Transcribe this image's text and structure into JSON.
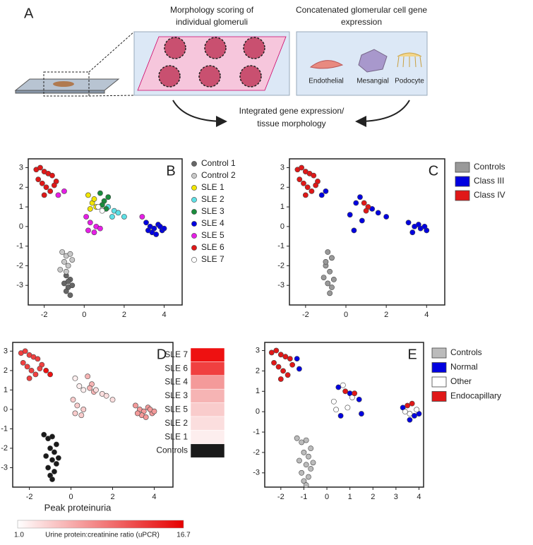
{
  "panel_a": {
    "label": "A",
    "morphology_title": [
      "Morphology scoring of",
      "individual glomeruli"
    ],
    "expression_title": [
      "Concatenated glomerular cell gene",
      "expression"
    ],
    "cells": [
      "Endothelial",
      "Mesangial",
      "Podocyte"
    ],
    "integration": [
      "Integrated gene expression/",
      "tissue morphology"
    ]
  },
  "chart_data": [
    {
      "type": "scatter",
      "panel": "B",
      "legend_marker": "circle",
      "xlim": [
        -2.8,
        4.9
      ],
      "ylim": [
        -4,
        3.45
      ],
      "xticks": [
        -2,
        0,
        2,
        4
      ],
      "yticks": [
        -3,
        -2,
        -1,
        0,
        1,
        2,
        3
      ],
      "series": [
        {
          "name": "Control 1",
          "color": "#666666",
          "x": [
            -0.9,
            -0.7,
            -1.0,
            -0.8,
            -0.6,
            -0.9,
            -0.7,
            -0.8
          ],
          "y": [
            -2.5,
            -2.7,
            -2.9,
            -3.1,
            -3.0,
            -3.3,
            -3.5,
            -2.8
          ]
        },
        {
          "name": "Control 2",
          "color": "#c8c8c8",
          "x": [
            -1.1,
            -0.9,
            -0.7,
            -1.0,
            -0.8,
            -0.6,
            -1.2,
            -0.9
          ],
          "y": [
            -1.3,
            -1.5,
            -1.4,
            -1.8,
            -2.0,
            -1.7,
            -2.2,
            -2.3
          ]
        },
        {
          "name": "SLE 1",
          "color": "#f2e600",
          "x": [
            0.2,
            0.4,
            0.6,
            0.3,
            0.5
          ],
          "y": [
            1.6,
            1.2,
            1.0,
            0.9,
            1.4
          ]
        },
        {
          "name": "SLE 2",
          "color": "#5ee0e6",
          "x": [
            1.2,
            1.5,
            1.7,
            2.0,
            1.4
          ],
          "y": [
            1.0,
            0.8,
            0.7,
            0.5,
            0.5
          ]
        },
        {
          "name": "SLE 3",
          "color": "#1a8c3c",
          "x": [
            0.8,
            1.0,
            1.1,
            0.9,
            1.2
          ],
          "y": [
            1.7,
            1.3,
            0.9,
            1.1,
            1.5
          ]
        },
        {
          "name": "SLE 4",
          "color": "#0000e0",
          "x": [
            3.1,
            3.3,
            3.5,
            3.7,
            3.9,
            3.4,
            3.6,
            3.8,
            4.0,
            3.2
          ],
          "y": [
            0.2,
            0.0,
            -0.1,
            0.1,
            -0.2,
            -0.3,
            -0.4,
            0.0,
            -0.1,
            -0.2
          ]
        },
        {
          "name": "SLE 5",
          "color": "#e61ee6",
          "x": [
            0.1,
            0.3,
            0.6,
            0.5,
            0.8,
            0.2,
            -1.0,
            -1.3,
            2.9
          ],
          "y": [
            0.5,
            0.2,
            0.0,
            -0.3,
            -0.1,
            -0.2,
            1.8,
            1.6,
            0.5
          ]
        },
        {
          "name": "SLE 6",
          "color": "#e01818",
          "x": [
            -2.4,
            -2.2,
            -2.0,
            -1.8,
            -1.6,
            -1.4,
            -2.3,
            -2.1,
            -1.9,
            -1.7,
            -1.5,
            -2.0
          ],
          "y": [
            2.9,
            3.0,
            2.8,
            2.7,
            2.6,
            2.3,
            2.4,
            2.2,
            2.0,
            1.8,
            2.1,
            1.6
          ]
        },
        {
          "name": "SLE 7",
          "color": "#ffffff",
          "x": [
            0.7,
            0.9
          ],
          "y": [
            1.0,
            0.8
          ]
        }
      ]
    },
    {
      "type": "scatter",
      "panel": "C",
      "legend_marker": "square",
      "xlim": [
        -2.8,
        4.9
      ],
      "ylim": [
        -4,
        3.45
      ],
      "xticks": [
        -2,
        0,
        2,
        4
      ],
      "yticks": [
        -3,
        -2,
        -1,
        0,
        1,
        2,
        3
      ],
      "series": [
        {
          "name": "Controls",
          "color": "#999999",
          "x": [
            -0.9,
            -0.7,
            -1.0,
            -0.8,
            -1.1,
            -0.9,
            -0.7,
            -0.8,
            -1.0,
            -0.6
          ],
          "y": [
            -1.3,
            -1.6,
            -2.0,
            -2.3,
            -2.6,
            -2.9,
            -3.1,
            -3.4,
            -1.8,
            -2.7
          ]
        },
        {
          "name": "Class III",
          "color": "#0000e0",
          "x": [
            3.1,
            3.4,
            3.7,
            4.0,
            3.3,
            3.6,
            3.9,
            0.2,
            0.5,
            0.8,
            1.3,
            1.6,
            2.0,
            0.4,
            0.7,
            -1.0,
            -1.2
          ],
          "y": [
            0.2,
            0.0,
            -0.1,
            -0.2,
            -0.3,
            0.1,
            0.0,
            0.6,
            1.2,
            0.3,
            0.9,
            0.7,
            0.5,
            -0.2,
            1.5,
            1.8,
            1.6
          ]
        },
        {
          "name": "Class IV",
          "color": "#e01818",
          "x": [
            -2.4,
            -2.2,
            -2.0,
            -1.8,
            -1.6,
            -1.4,
            -2.3,
            -2.1,
            -1.9,
            -1.7,
            -1.5,
            -2.0,
            0.9,
            1.1,
            1.0
          ],
          "y": [
            2.9,
            3.0,
            2.8,
            2.7,
            2.6,
            2.3,
            2.4,
            2.2,
            2.0,
            1.8,
            2.1,
            1.6,
            1.2,
            1.0,
            0.8
          ]
        }
      ]
    },
    {
      "type": "scatter",
      "panel": "D",
      "legend_marker": "stacked",
      "xlim": [
        -2.8,
        4.9
      ],
      "ylim": [
        -4,
        3.45
      ],
      "xticks": [
        -2,
        0,
        2,
        4
      ],
      "yticks": [
        -3,
        -2,
        -1,
        0,
        1,
        2,
        3
      ],
      "colorbar": {
        "title": "Peak proteinuria",
        "label": "Urine protein:creatinine ratio (uPCR)",
        "min": {
          "value": 1,
          "label": "1.0"
        },
        "max": 16.7,
        "min_color": "#ffffff",
        "max_color": "#e60000"
      },
      "series": [
        {
          "name": "SLE 7",
          "color": "#ee1111",
          "x": [
            -1.2,
            -1.0
          ],
          "y": [
            2.0,
            1.8
          ]
        },
        {
          "name": "SLE 6",
          "color": "#f04040",
          "x": [
            -2.4,
            -2.2,
            -2.0,
            -1.8,
            -1.6,
            -1.4,
            -2.3,
            -2.1,
            -1.9,
            -1.7,
            -1.5,
            -2.0
          ],
          "y": [
            2.9,
            3.0,
            2.8,
            2.7,
            2.6,
            2.3,
            2.4,
            2.2,
            2.0,
            1.8,
            2.1,
            1.6
          ]
        },
        {
          "name": "SLE 4",
          "color": "#f49a9a",
          "x": [
            3.1,
            3.3,
            3.5,
            3.7,
            3.9,
            3.4,
            3.6,
            3.8,
            4.0,
            3.2
          ],
          "y": [
            0.2,
            0.0,
            -0.1,
            0.1,
            -0.2,
            -0.3,
            -0.4,
            0.0,
            -0.1,
            -0.2
          ]
        },
        {
          "name": "SLE 3",
          "color": "#f6b4b4",
          "x": [
            0.8,
            1.0,
            1.1,
            0.9
          ],
          "y": [
            1.7,
            1.3,
            0.9,
            1.1
          ]
        },
        {
          "name": "SLE 5",
          "color": "#f9cccc",
          "x": [
            0.1,
            0.3,
            0.6,
            0.5,
            0.2
          ],
          "y": [
            0.5,
            0.2,
            0.0,
            -0.3,
            -0.2
          ]
        },
        {
          "name": "SLE 2",
          "color": "#fbdede",
          "x": [
            1.2,
            1.5,
            1.7,
            2.0
          ],
          "y": [
            1.0,
            0.8,
            0.7,
            0.5
          ]
        },
        {
          "name": "SLE 1",
          "color": "#fdeeee",
          "x": [
            0.2,
            0.4,
            0.6
          ],
          "y": [
            1.6,
            1.2,
            1.0
          ]
        },
        {
          "name": "Controls",
          "color": "#1a1a1a",
          "x": [
            -1.3,
            -1.1,
            -0.9,
            -0.7,
            -1.0,
            -0.8,
            -1.2,
            -0.9,
            -0.7,
            -1.1,
            -0.8,
            -1.0,
            -0.6,
            -0.9
          ],
          "y": [
            -1.3,
            -1.5,
            -1.4,
            -1.8,
            -2.0,
            -2.2,
            -2.4,
            -2.6,
            -2.8,
            -3.0,
            -3.2,
            -3.4,
            -2.5,
            -3.6
          ]
        }
      ]
    },
    {
      "type": "scatter",
      "panel": "E",
      "legend_marker": "square",
      "xlim": [
        -2.7,
        4.2
      ],
      "ylim": [
        -3.7,
        3.4
      ],
      "xticks": [
        -2,
        -1,
        0,
        1,
        2,
        3,
        4
      ],
      "yticks": [
        -3,
        -2,
        -1,
        0,
        1,
        2,
        3
      ],
      "series": [
        {
          "name": "Controls",
          "color": "#bbbbbb",
          "x": [
            -1.3,
            -1.1,
            -0.9,
            -0.7,
            -1.0,
            -0.8,
            -1.2,
            -0.9,
            -0.7,
            -1.1,
            -0.8,
            -1.0,
            -0.6,
            -0.9
          ],
          "y": [
            -1.3,
            -1.5,
            -1.4,
            -1.8,
            -2.0,
            -2.2,
            -2.4,
            -2.6,
            -2.8,
            -3.0,
            -3.2,
            -3.4,
            -2.5,
            -3.6
          ]
        },
        {
          "name": "Normal",
          "color": "#0000e0",
          "x": [
            -1.3,
            -1.2,
            0.5,
            1.0,
            1.4,
            0.6,
            1.5,
            3.3,
            3.8,
            4.0,
            3.6
          ],
          "y": [
            2.6,
            2.1,
            1.2,
            0.9,
            0.6,
            -0.2,
            -0.1,
            0.2,
            -0.2,
            -0.1,
            -0.4
          ]
        },
        {
          "name": "Other",
          "color": "#ffffff",
          "x": [
            0.3,
            0.7,
            1.1,
            0.4,
            0.9,
            3.4,
            3.6,
            3.9
          ],
          "y": [
            0.5,
            1.3,
            0.7,
            0.1,
            0.2,
            0.0,
            -0.1,
            0.1
          ]
        },
        {
          "name": "Endocapillary",
          "color": "#e01818",
          "x": [
            -2.4,
            -2.2,
            -2.0,
            -1.8,
            -1.6,
            -1.5,
            -2.3,
            -2.1,
            -1.9,
            -1.7,
            -2.0,
            0.8,
            1.2,
            3.5,
            3.7
          ],
          "y": [
            2.9,
            3.0,
            2.8,
            2.7,
            2.6,
            2.3,
            2.4,
            2.2,
            2.0,
            1.8,
            1.6,
            1.0,
            0.9,
            0.3,
            0.4
          ]
        }
      ]
    }
  ]
}
